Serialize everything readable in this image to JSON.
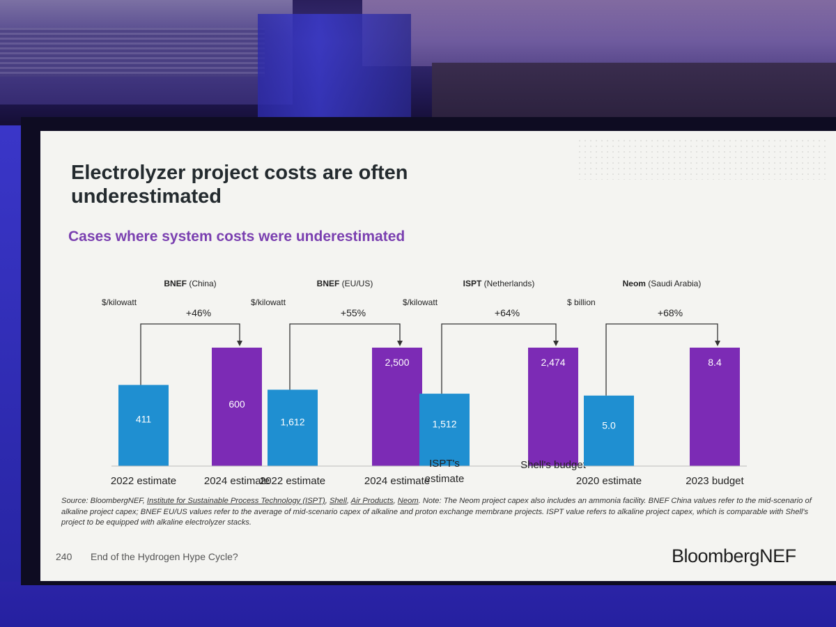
{
  "slide": {
    "title_line1": "Electrolyzer project costs are often",
    "title_line2": "underestimated",
    "subtitle": "Cases where system costs were underestimated",
    "page_number": "240",
    "footer_text": "End of the Hydrogen Hype Cycle?",
    "brand": "BloombergNEF",
    "source_prefix": "Source: BloombergNEF, ",
    "source_link_ispt": "Institute for Sustainable Process Technology (ISPT)",
    "source_sep1": ", ",
    "source_link_shell": "Shell",
    "source_sep2": ", ",
    "source_link_air": "Air Products",
    "source_sep3": ", ",
    "source_link_neom": "Neom",
    "source_rest": ". Note: The Neom project capex also includes an ammonia facility. BNEF China values refer to the mid-scenario of alkaline project capex; BNEF EU/US values refer to the average of mid-scenario capex of alkaline and proton exchange membrane projects. ISPT value refers to alkaline project capex, which is comparable with Shell's project to be equipped with alkaline electrolyzer stacks."
  },
  "colors": {
    "before_bar": "#1f8fd1",
    "after_bar": "#7c2bb5",
    "subtitle": "#7a3fb0",
    "bar_label": "#ffffff"
  },
  "chart_data": [
    {
      "type": "bar",
      "group_bold": "BNEF",
      "group_rest": " (China)",
      "unit": "$/kilowatt",
      "change": "+46%",
      "categories": [
        "2022 estimate",
        "2024 estimate"
      ],
      "values": [
        411,
        600
      ],
      "labels": [
        "411",
        "600"
      ]
    },
    {
      "type": "bar",
      "group_bold": "BNEF",
      "group_rest": " (EU/US)",
      "unit": "$/kilowatt",
      "change": "+55%",
      "categories": [
        "2022 estimate",
        "2024 estimate"
      ],
      "values": [
        1612,
        2500
      ],
      "labels": [
        "1,612",
        "2,500"
      ]
    },
    {
      "type": "bar",
      "group_bold": "ISPT",
      "group_rest": " (Netherlands)",
      "unit": "$/kilowatt",
      "change": "+64%",
      "categories": [
        "ISPT's estimate",
        "Shell's budget"
      ],
      "values": [
        1512,
        2474
      ],
      "labels": [
        "1,512",
        "2,474"
      ]
    },
    {
      "type": "bar",
      "group_bold": "Neom",
      "group_rest": " (Saudi Arabia)",
      "unit": "$ billion",
      "change": "+68%",
      "categories": [
        "2020 estimate",
        "2023 budget"
      ],
      "values": [
        5.0,
        8.4
      ],
      "labels": [
        "5.0",
        "8.4"
      ]
    }
  ]
}
